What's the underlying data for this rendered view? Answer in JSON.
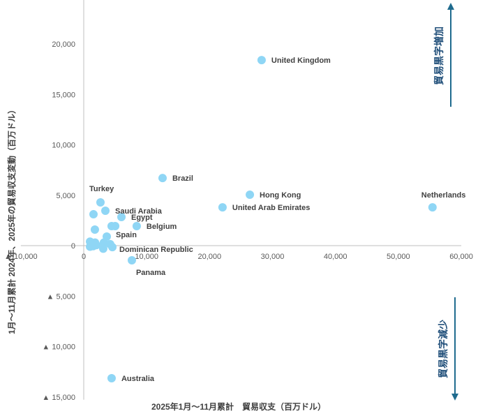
{
  "chart_data": {
    "type": "scatter",
    "xlabel": "2025年1月～11月累計　貿易収支（百万ドル）",
    "ylabel": "1月～11月累計 2024年、2025年の貿易収支変動（百万ドル）",
    "xlim": [
      -10000,
      60000
    ],
    "ylim": [
      -15000,
      24000
    ],
    "x_ticks": [
      {
        "value": -10000,
        "label": "▲ 10,000"
      },
      {
        "value": 0,
        "label": "0"
      },
      {
        "value": 10000,
        "label": "10,000"
      },
      {
        "value": 20000,
        "label": "20,000"
      },
      {
        "value": 30000,
        "label": "30,000"
      },
      {
        "value": 40000,
        "label": "40,000"
      },
      {
        "value": 50000,
        "label": "50,000"
      },
      {
        "value": 60000,
        "label": "60,000"
      }
    ],
    "y_ticks": [
      {
        "value": 20000,
        "label": "20,000"
      },
      {
        "value": 15000,
        "label": "15,000"
      },
      {
        "value": 10000,
        "label": "10,000"
      },
      {
        "value": 5000,
        "label": "5,000"
      },
      {
        "value": 0,
        "label": "0"
      },
      {
        "value": -5000,
        "label": "▲ 5,000"
      },
      {
        "value": -10000,
        "label": "▲ 10,000"
      },
      {
        "value": -15000,
        "label": "▲ 15,000"
      }
    ],
    "grid": false,
    "marker_color": "#8fd6f5",
    "points": [
      {
        "x": 28270,
        "y": 18400,
        "label": "United Kingdom"
      },
      {
        "x": 12530,
        "y": 6700,
        "label": "Brazil"
      },
      {
        "x": 26400,
        "y": 5050,
        "label": "Hong Kong"
      },
      {
        "x": 22060,
        "y": 3800,
        "label": "United Arab Emirates"
      },
      {
        "x": 55430,
        "y": 3800,
        "label": "Netherlands"
      },
      {
        "x": 2660,
        "y": 4290,
        "label": "Turkey"
      },
      {
        "x": 3440,
        "y": 3460,
        "label": "Saudi Arabia"
      },
      {
        "x": 5990,
        "y": 2840,
        "label": "Egypt"
      },
      {
        "x": 8420,
        "y": 1940,
        "label": "Belgium"
      },
      {
        "x": 3660,
        "y": 900,
        "label": "Spain"
      },
      {
        "x": 4550,
        "y": -150,
        "label": "Dominican Republic"
      },
      {
        "x": 7650,
        "y": -1450,
        "label": "Panama"
      },
      {
        "x": 4430,
        "y": -13150,
        "label": "Australia"
      },
      {
        "x": 1550,
        "y": 3110,
        "label": ""
      },
      {
        "x": 4430,
        "y": 1940,
        "label": ""
      },
      {
        "x": 5000,
        "y": 1940,
        "label": ""
      },
      {
        "x": 1770,
        "y": 1590,
        "label": ""
      },
      {
        "x": 1000,
        "y": 400,
        "label": ""
      },
      {
        "x": 1200,
        "y": 100,
        "label": ""
      },
      {
        "x": 1000,
        "y": -100,
        "label": ""
      },
      {
        "x": 1800,
        "y": 300,
        "label": ""
      },
      {
        "x": 2000,
        "y": 50,
        "label": ""
      },
      {
        "x": 1500,
        "y": -50,
        "label": ""
      },
      {
        "x": 3200,
        "y": 300,
        "label": ""
      },
      {
        "x": 3100,
        "y": -300,
        "label": ""
      },
      {
        "x": 4200,
        "y": 150,
        "label": ""
      }
    ],
    "annotations": {
      "increase": "貿易黒字増加",
      "decrease": "貿易黒字減少"
    }
  }
}
